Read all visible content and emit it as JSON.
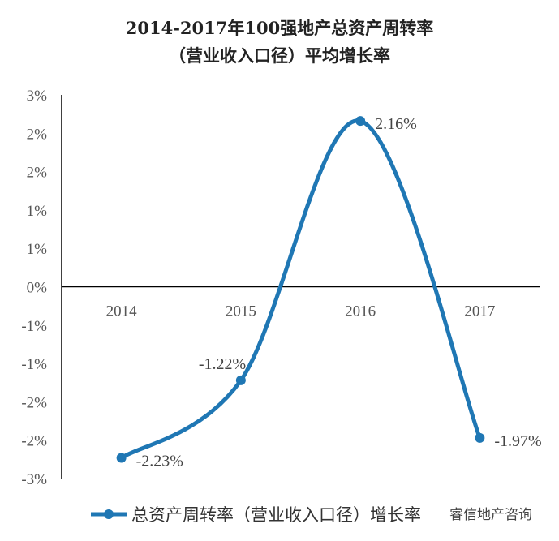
{
  "chart_data": {
    "type": "line",
    "title_lines": [
      "2014-2017年100强地产总资产周转率",
      "（营业收入口径）平均增长率"
    ],
    "categories": [
      "2014",
      "2015",
      "2016",
      "2017"
    ],
    "series": [
      {
        "name": "总资产周转率（营业收入口径）增长率",
        "values": [
          -2.23,
          -1.22,
          2.16,
          -1.97
        ],
        "labels": [
          "-2.23%",
          "-1.22%",
          "2.16%",
          "-1.97%"
        ],
        "color": "#1f77b4"
      }
    ],
    "y_tick_labels": [
      "3%",
      "2%",
      "2%",
      "1%",
      "1%",
      "0%",
      "-1%",
      "-1%",
      "-2%",
      "-2%",
      "-3%"
    ],
    "ylim": [
      -2.5,
      2.5
    ],
    "grid": false,
    "legend": "bottom",
    "line_color": "#1f77b4"
  },
  "watermark": {
    "text": "睿信地产咨询"
  }
}
